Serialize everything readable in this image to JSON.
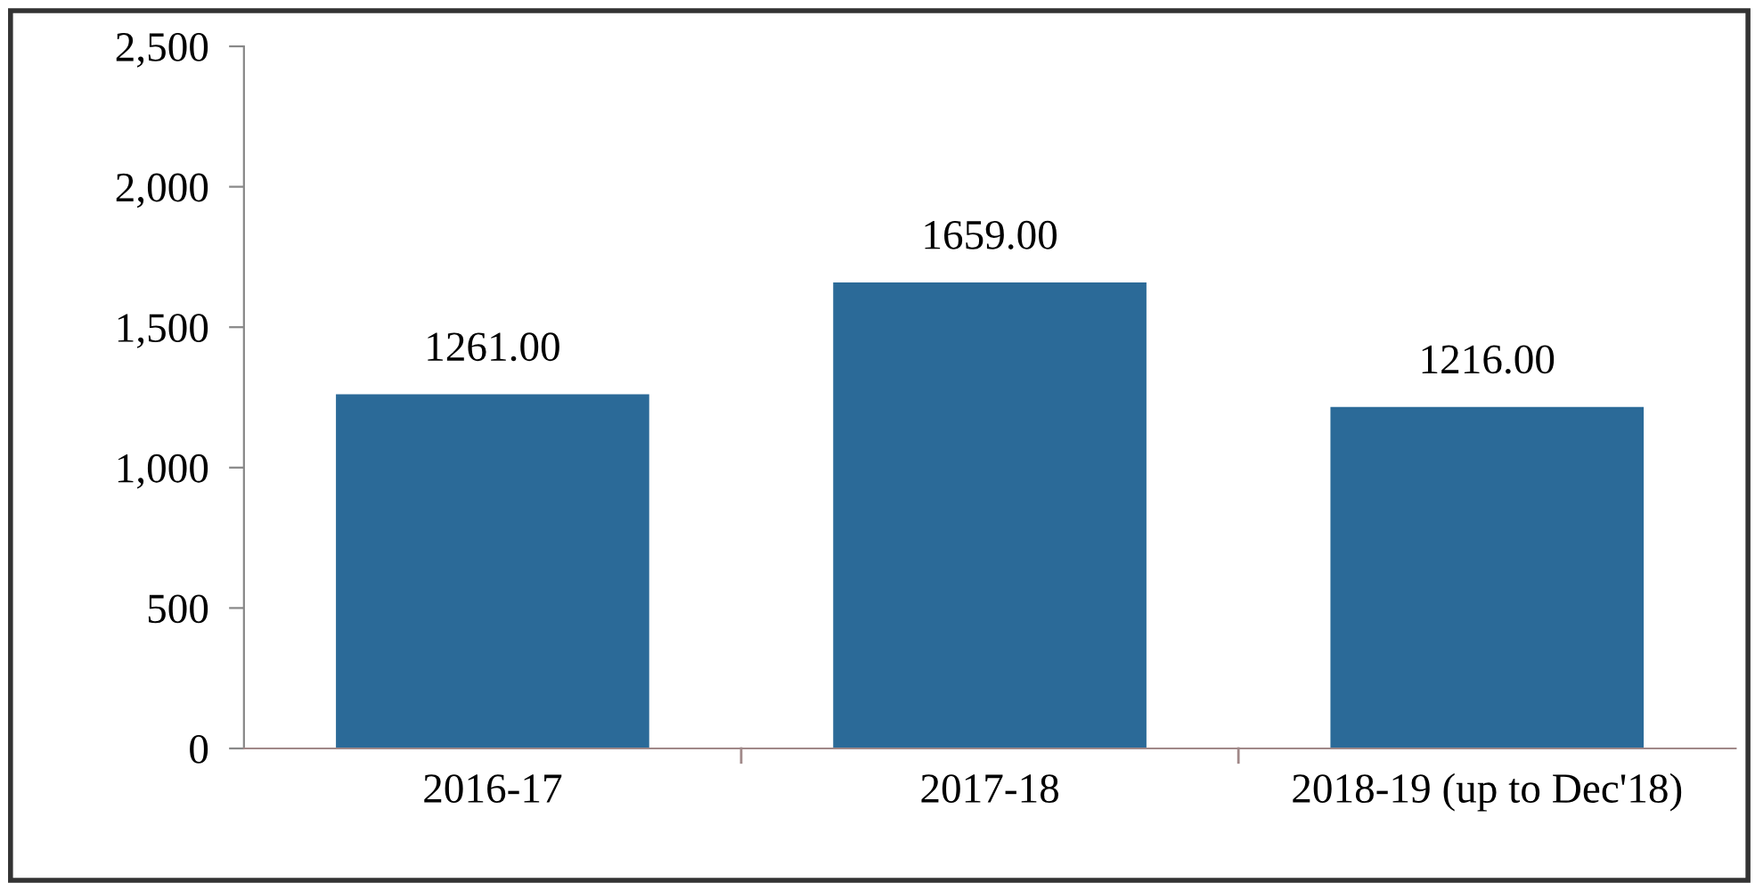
{
  "chart_data": {
    "type": "bar",
    "categories": [
      "2016-17",
      "2017-18",
      "2018-19 (up to Dec'18)"
    ],
    "values": [
      1261,
      1659,
      1216
    ],
    "value_labels": [
      "1261.00",
      "1659.00",
      "1216.00"
    ],
    "color": "#2b6a98",
    "ylim": [
      0,
      2500
    ],
    "yticks": [
      {
        "value": 0,
        "label": "0"
      },
      {
        "value": 500,
        "label": "500"
      },
      {
        "value": 1000,
        "label": "1,000"
      },
      {
        "value": 1500,
        "label": "1,500"
      },
      {
        "value": 2000,
        "label": "2,000"
      },
      {
        "value": 2500,
        "label": "2,500"
      }
    ],
    "grid": false,
    "legend": false
  }
}
